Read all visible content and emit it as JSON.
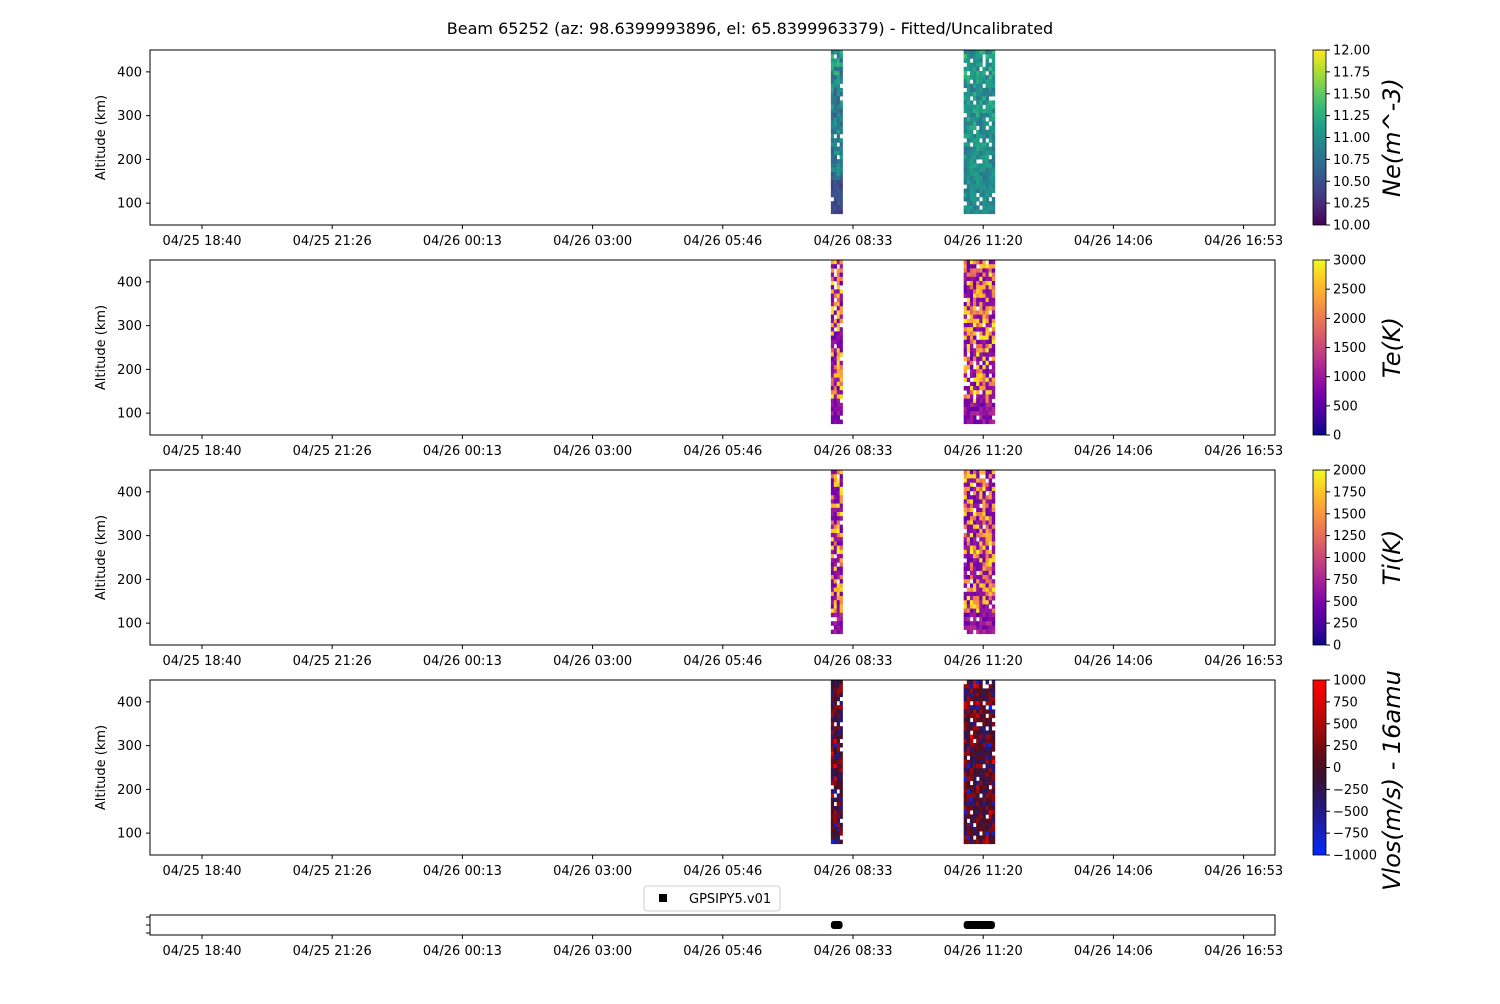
{
  "figure": {
    "title": "Beam 65252 (az: 98.6399993896, el: 65.8399963379) - Fitted/Uncalibrated"
  },
  "chart_data": [
    {
      "type": "heatmap",
      "id": "ne",
      "ylabel": "Altitude (km)",
      "xticks": [
        "04/25 18:40",
        "04/25 21:26",
        "04/26 00:13",
        "04/26 03:00",
        "04/26 05:46",
        "04/26 08:33",
        "04/26 11:20",
        "04/26 14:06",
        "04/26 16:53"
      ],
      "yticks": [
        100,
        200,
        300,
        400
      ],
      "ylim": [
        50,
        450
      ],
      "colorbar": {
        "label": "Ne(m^-3)",
        "colormap": "viridis",
        "range": [
          10.0,
          12.0
        ],
        "ticks": [
          "10.00",
          "10.25",
          "10.50",
          "10.75",
          "11.00",
          "11.25",
          "11.50",
          "11.75",
          "12.00"
        ]
      },
      "data_blocks": [
        {
          "time_start": "04/26 08:05",
          "time_end": "04/26 08:20",
          "alt_range": [
            85,
            450
          ],
          "value_range": [
            10.2,
            11.6
          ]
        },
        {
          "time_start": "04/26 10:55",
          "time_end": "04/26 11:35",
          "alt_range": [
            82,
            450
          ],
          "value_range": [
            10.5,
            11.6
          ]
        }
      ]
    },
    {
      "type": "heatmap",
      "id": "te",
      "ylabel": "Altitude (km)",
      "xticks": [
        "04/25 18:40",
        "04/25 21:26",
        "04/26 00:13",
        "04/26 03:00",
        "04/26 05:46",
        "04/26 08:33",
        "04/26 11:20",
        "04/26 14:06",
        "04/26 16:53"
      ],
      "yticks": [
        100,
        200,
        300,
        400
      ],
      "ylim": [
        50,
        450
      ],
      "colorbar": {
        "label": "Te(K)",
        "colormap": "plasma",
        "range": [
          0,
          3000
        ],
        "ticks": [
          "0",
          "500",
          "1000",
          "1500",
          "2000",
          "2500",
          "3000"
        ]
      },
      "data_blocks": [
        {
          "time_start": "04/26 08:05",
          "time_end": "04/26 08:20",
          "alt_range": [
            85,
            450
          ],
          "value_range": [
            300,
            3000
          ]
        },
        {
          "time_start": "04/26 10:55",
          "time_end": "04/26 11:35",
          "alt_range": [
            82,
            450
          ],
          "value_range": [
            300,
            3000
          ]
        }
      ]
    },
    {
      "type": "heatmap",
      "id": "ti",
      "ylabel": "Altitude (km)",
      "xticks": [
        "04/25 18:40",
        "04/25 21:26",
        "04/26 00:13",
        "04/26 03:00",
        "04/26 05:46",
        "04/26 08:33",
        "04/26 11:20",
        "04/26 14:06",
        "04/26 16:53"
      ],
      "yticks": [
        100,
        200,
        300,
        400
      ],
      "ylim": [
        50,
        450
      ],
      "colorbar": {
        "label": "Ti(K)",
        "colormap": "plasma",
        "range": [
          0,
          2000
        ],
        "ticks": [
          "0",
          "250",
          "500",
          "750",
          "1000",
          "1250",
          "1500",
          "1750",
          "2000"
        ]
      },
      "data_blocks": [
        {
          "time_start": "04/26 08:05",
          "time_end": "04/26 08:20",
          "alt_range": [
            85,
            450
          ],
          "value_range": [
            400,
            2000
          ]
        },
        {
          "time_start": "04/26 10:55",
          "time_end": "04/26 11:35",
          "alt_range": [
            82,
            450
          ],
          "value_range": [
            400,
            2000
          ]
        }
      ]
    },
    {
      "type": "heatmap",
      "id": "vlos",
      "ylabel": "Altitude (km)",
      "xticks": [
        "04/25 18:40",
        "04/25 21:26",
        "04/26 00:13",
        "04/26 03:00",
        "04/26 05:46",
        "04/26 08:33",
        "04/26 11:20",
        "04/26 14:06",
        "04/26 16:53"
      ],
      "yticks": [
        100,
        200,
        300,
        400
      ],
      "ylim": [
        50,
        450
      ],
      "colorbar": {
        "label": "Vlos(m/s) - 16amu",
        "colormap": "blue-dark-red",
        "range": [
          -1000,
          1000
        ],
        "ticks": [
          "−1000",
          "−750",
          "−500",
          "−250",
          "0",
          "250",
          "500",
          "750",
          "1000"
        ]
      },
      "data_blocks": [
        {
          "time_start": "04/26 08:05",
          "time_end": "04/26 08:20",
          "alt_range": [
            82,
            450
          ],
          "value_range": [
            -1000,
            1000
          ]
        },
        {
          "time_start": "04/26 10:55",
          "time_end": "04/26 11:35",
          "alt_range": [
            82,
            450
          ],
          "value_range": [
            -1000,
            1000
          ]
        }
      ]
    },
    {
      "type": "scatter",
      "id": "gps",
      "legend": "GPSIPY5.v01",
      "xticks": [
        "04/25 18:40",
        "04/25 21:26",
        "04/26 00:13",
        "04/26 03:00",
        "04/26 05:46",
        "04/26 08:33",
        "04/26 11:20",
        "04/26 14:06",
        "04/26 16:53"
      ],
      "segments": [
        {
          "time_start": "04/26 08:05",
          "time_end": "04/26 08:20"
        },
        {
          "time_start": "04/26 10:55",
          "time_end": "04/26 11:35"
        }
      ]
    }
  ]
}
